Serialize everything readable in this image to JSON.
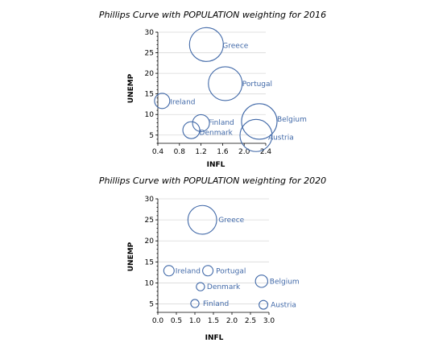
{
  "chart_data": [
    {
      "type": "scatter",
      "title": "Phillips Curve with POPULATION weighting for 2016",
      "xlabel": "INFL",
      "ylabel": "UNEMP",
      "xlim": [
        0.4,
        2.4
      ],
      "ylim": [
        3,
        30
      ],
      "x_ticks": [
        "0.4",
        "0.8",
        "1.2",
        "1.6",
        "2.0",
        "2.4"
      ],
      "y_ticks": [
        "5",
        "10",
        "15",
        "20",
        "25",
        "30"
      ],
      "grid": "horizontal",
      "marker_color": "#4169A8",
      "points": [
        {
          "label": "Greece",
          "x": 1.3,
          "y": 27.0,
          "weight": 1.0
        },
        {
          "label": "Portugal",
          "x": 1.65,
          "y": 17.5,
          "weight": 1.0
        },
        {
          "label": "Ireland",
          "x": 0.48,
          "y": 13.3,
          "weight": 0.45
        },
        {
          "label": "Belgium",
          "x": 2.28,
          "y": 8.3,
          "weight": 1.05
        },
        {
          "label": "Finland",
          "x": 1.2,
          "y": 7.9,
          "weight": 0.5
        },
        {
          "label": "Denmark",
          "x": 1.02,
          "y": 6.2,
          "weight": 0.5
        },
        {
          "label": "Austria",
          "x": 2.22,
          "y": 4.9,
          "weight": 0.95
        }
      ]
    },
    {
      "type": "scatter",
      "title": "Phillips Curve with POPULATION weighting for 2020",
      "xlabel": "INFL",
      "ylabel": "UNEMP",
      "xlim": [
        0.0,
        3.0
      ],
      "ylim": [
        3,
        30
      ],
      "x_ticks": [
        "0.0",
        "0.5",
        "1.0",
        "1.5",
        "2.0",
        "2.5",
        "3.0"
      ],
      "y_ticks": [
        "5",
        "10",
        "15",
        "20",
        "25",
        "30"
      ],
      "grid": "horizontal",
      "marker_color": "#4169A8",
      "points": [
        {
          "label": "Greece",
          "x": 1.2,
          "y": 25.0,
          "weight": 1.05
        },
        {
          "label": "Ireland",
          "x": 0.3,
          "y": 12.9,
          "weight": 0.38
        },
        {
          "label": "Portugal",
          "x": 1.35,
          "y": 12.9,
          "weight": 0.38
        },
        {
          "label": "Belgium",
          "x": 2.8,
          "y": 10.4,
          "weight": 0.45
        },
        {
          "label": "Denmark",
          "x": 1.15,
          "y": 9.1,
          "weight": 0.3
        },
        {
          "label": "Finland",
          "x": 1.0,
          "y": 5.1,
          "weight": 0.3
        },
        {
          "label": "Austria",
          "x": 2.85,
          "y": 4.8,
          "weight": 0.32
        }
      ]
    }
  ]
}
